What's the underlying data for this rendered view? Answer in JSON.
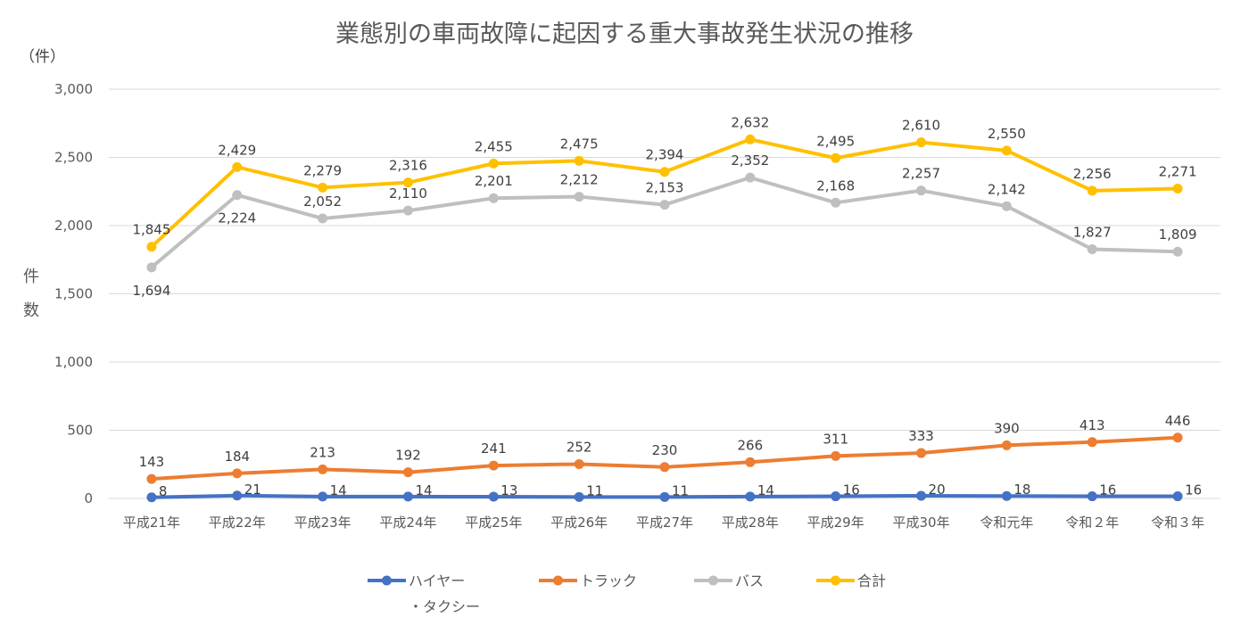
{
  "chart_data": {
    "type": "line",
    "title": "業態別の車両故障に起因する重大事故発生状況の推移",
    "unit_label": "（件）",
    "ylabel": [
      "件",
      "数"
    ],
    "xlabel": "",
    "ylim": [
      0,
      3000
    ],
    "yticks": [
      0,
      500,
      1000,
      1500,
      2000,
      2500,
      3000
    ],
    "ytick_labels": [
      "0",
      "500",
      "1,000",
      "1,500",
      "2,000",
      "2,500",
      "3,000"
    ],
    "grid": true,
    "legend_position": "bottom",
    "categories": [
      "平成21年",
      "平成22年",
      "平成23年",
      "平成24年",
      "平成25年",
      "平成26年",
      "平成27年",
      "平成28年",
      "平成29年",
      "平成30年",
      "令和元年",
      "令和２年",
      "令和３年"
    ],
    "series": [
      {
        "key": "hire",
        "name": "ハイヤー",
        "name_line2": "・タクシー",
        "color": "#4472C4",
        "label_pos": "right-above",
        "values": [
          8,
          21,
          14,
          14,
          13,
          11,
          11,
          14,
          16,
          20,
          18,
          16,
          16
        ],
        "labels": [
          "8",
          "21",
          "14",
          "14",
          "13",
          "11",
          "11",
          "14",
          "16",
          "20",
          "18",
          "16",
          "16"
        ]
      },
      {
        "key": "truck",
        "name": "トラック",
        "color": "#ED7D31",
        "label_pos": "above",
        "values": [
          143,
          184,
          213,
          192,
          241,
          252,
          230,
          266,
          311,
          333,
          390,
          413,
          446
        ],
        "labels": [
          "143",
          "184",
          "213",
          "192",
          "241",
          "252",
          "230",
          "266",
          "311",
          "333",
          "390",
          "413",
          "446"
        ]
      },
      {
        "key": "bus",
        "name": "バス",
        "color": "#BFBFBF",
        "label_pos": "mixed",
        "values": [
          1694,
          2224,
          2052,
          2110,
          2201,
          2212,
          2153,
          2352,
          2168,
          2257,
          2142,
          1827,
          1809
        ],
        "labels": [
          "1,694",
          "2,224",
          "2,052",
          "2,110",
          "2,201",
          "2,212",
          "2,153",
          "2,352",
          "2,168",
          "2,257",
          "2,142",
          "1,827",
          "1,809"
        ]
      },
      {
        "key": "total",
        "name": "合計",
        "color": "#FFC000",
        "label_pos": "above",
        "values": [
          1845,
          2429,
          2279,
          2316,
          2455,
          2475,
          2394,
          2632,
          2495,
          2610,
          2550,
          2256,
          2271
        ],
        "labels": [
          "1,845",
          "2,429",
          "2,279",
          "2,316",
          "2,455",
          "2,475",
          "2,394",
          "2,632",
          "2,495",
          "2,610",
          "2,550",
          "2,256",
          "2,271"
        ]
      }
    ]
  }
}
